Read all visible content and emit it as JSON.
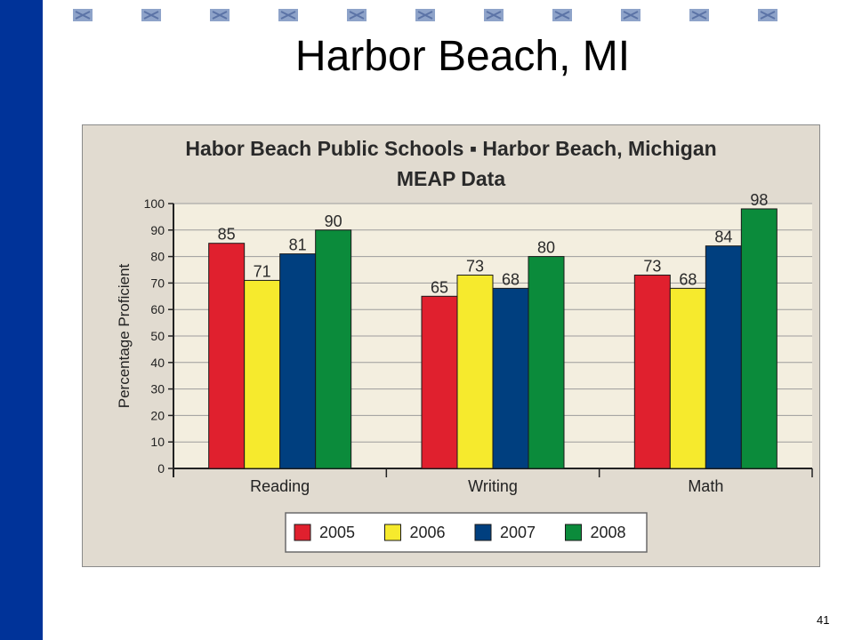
{
  "slide": {
    "title": "Harbor Beach, MI",
    "page_number": "41",
    "colors": {
      "left_bar": "#003399",
      "deco": "#8ea3c9"
    }
  },
  "chart_data": {
    "type": "bar",
    "title": "Habor Beach Public Schools  ▪  Harbor Beach, Michigan",
    "subtitle": "MEAP Data",
    "xlabel": "",
    "ylabel": "Percentage Proficient",
    "ylim": [
      0,
      100
    ],
    "yticks": [
      0,
      10,
      20,
      30,
      40,
      50,
      60,
      70,
      80,
      90,
      100
    ],
    "grid": true,
    "legend": "bottom",
    "categories": [
      "Reading",
      "Writing",
      "Math"
    ],
    "series": [
      {
        "name": "2005",
        "color": "#e0202e",
        "values": [
          85,
          65,
          73
        ]
      },
      {
        "name": "2006",
        "color": "#f6ea2d",
        "values": [
          71,
          73,
          68
        ]
      },
      {
        "name": "2007",
        "color": "#003f7f",
        "values": [
          81,
          68,
          84
        ]
      },
      {
        "name": "2008",
        "color": "#0b8b3b",
        "values": [
          90,
          80,
          98
        ]
      }
    ]
  }
}
